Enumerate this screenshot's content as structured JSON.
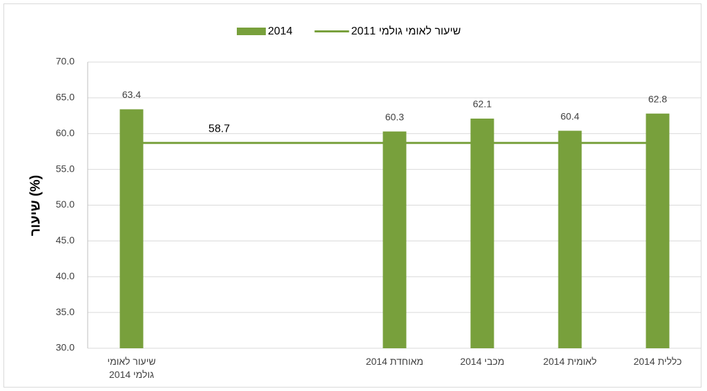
{
  "chart_data": {
    "type": "bar",
    "categories": [
      "שיעור לאומי גולמי 2014",
      null,
      null,
      "מאוחדת 2014",
      "מכבי 2014",
      "לאומית 2014",
      "כללית 2014"
    ],
    "series": [
      {
        "name": "2014",
        "type": "bar",
        "color": "#78a03c",
        "values": [
          63.4,
          null,
          null,
          60.3,
          62.1,
          60.4,
          62.8
        ]
      },
      {
        "name": "שיעור לאומי גולמי 2011",
        "type": "line",
        "color": "#78a03c",
        "values": [
          58.7,
          58.7,
          58.7,
          58.7,
          58.7,
          58.7,
          58.7
        ],
        "labeled_index": 1
      }
    ],
    "y_label": "שיעור (%)",
    "ylim": [
      30,
      70
    ],
    "yticks": [
      {
        "value": 30,
        "label": "30.0"
      },
      {
        "value": 35,
        "label": "35.0"
      },
      {
        "value": 40,
        "label": "40.0"
      },
      {
        "value": 45,
        "label": "45.0"
      },
      {
        "value": 50,
        "label": "50.0"
      },
      {
        "value": 55,
        "label": "55.0"
      },
      {
        "value": 60,
        "label": "60.0"
      },
      {
        "value": 65,
        "label": "65.0"
      },
      {
        "value": 70,
        "label": "70.0"
      }
    ],
    "grid": true,
    "legend": "top"
  }
}
